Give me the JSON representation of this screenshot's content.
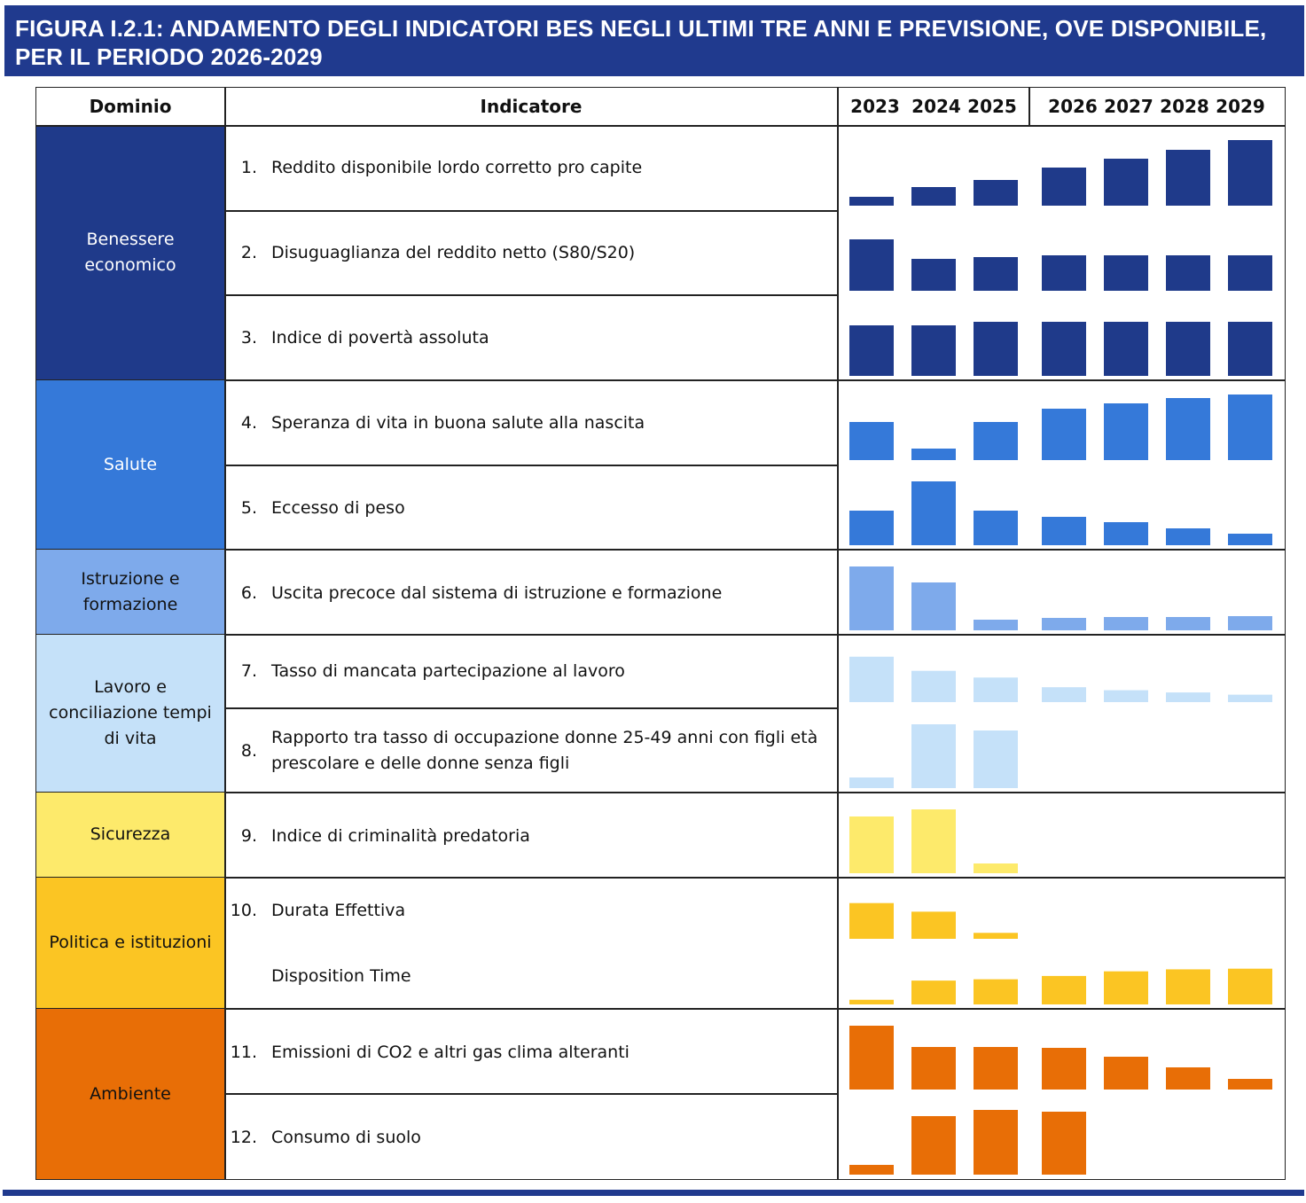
{
  "title": "FIGURA I.2.1: ANDAMENTO DEGLI INDICATORI BES NEGLI ULTIMI TRE ANNI E PREVISIONE, OVE DISPONIBILE, PER IL PERIODO 2026-2029",
  "header": {
    "dominio": "Dominio",
    "indicatore": "Indicatore",
    "years": [
      "2023",
      "2024",
      "2025",
      "2026",
      "2027",
      "2028",
      "2029"
    ]
  },
  "domains": [
    {
      "name": "Benessere economico",
      "color": "#1f3a8a",
      "text_color": "#ffffff"
    },
    {
      "name": "Salute",
      "color": "#3579d9",
      "text_color": "#ffffff"
    },
    {
      "name": "Istruzione e formazione",
      "color": "#7eaaeb",
      "text_color": "#111111"
    },
    {
      "name": "Lavoro e conciliazione tempi di vita",
      "color": "#c5e1f9",
      "text_color": "#111111"
    },
    {
      "name": "Sicurezza",
      "color": "#fdea6b",
      "text_color": "#111111"
    },
    {
      "name": "Politica e istituzioni",
      "color": "#fbc523",
      "text_color": "#111111"
    },
    {
      "name": "Ambiente",
      "color": "#e86e06",
      "text_color": "#111111"
    }
  ],
  "indicators": [
    {
      "num": "1.",
      "label": "Reddito disponibile lordo corretto pro capite"
    },
    {
      "num": "2.",
      "label": "Disuguaglianza del reddito netto (S80/S20)"
    },
    {
      "num": "3.",
      "label": "Indice di povertà assoluta"
    },
    {
      "num": "4.",
      "label": "Speranza di vita in buona salute alla nascita"
    },
    {
      "num": "5.",
      "label": "Eccesso di peso"
    },
    {
      "num": "6.",
      "label": "Uscita precoce dal sistema di istruzione e formazione"
    },
    {
      "num": "7.",
      "label": "Tasso di mancata partecipazione al lavoro"
    },
    {
      "num": "8.",
      "label": "Rapporto tra tasso di occupazione donne 25-49 anni con figli età prescolare e delle donne senza figli"
    },
    {
      "num": "9.",
      "label": "Indice di criminalità predatoria"
    },
    {
      "num": "10.",
      "label": "Durata Effettiva"
    },
    {
      "num": "",
      "label": "Disposition Time"
    },
    {
      "num": "11.",
      "label": "Emissioni di CO2 e altri gas clima alteranti"
    },
    {
      "num": "12.",
      "label": "Consumo di suolo"
    }
  ],
  "chart_data": {
    "type": "bar",
    "categories": [
      "2023",
      "2024",
      "2025",
      "2026",
      "2027",
      "2028",
      "2029"
    ],
    "series": [
      {
        "name": "Reddito disponibile lordo corretto pro capite",
        "values": [
          10,
          21,
          29,
          43,
          53,
          63,
          74
        ]
      },
      {
        "name": "Disuguaglianza del reddito netto (S80/S20)",
        "values": [
          58,
          36,
          38,
          40,
          40,
          40,
          40
        ]
      },
      {
        "name": "Indice di povertà assoluta",
        "values": [
          57,
          57,
          61,
          61,
          61,
          61,
          61
        ]
      },
      {
        "name": "Speranza di vita in buona salute alla nascita",
        "values": [
          43,
          13,
          43,
          58,
          64,
          70,
          74
        ]
      },
      {
        "name": "Eccesso di peso",
        "values": [
          39,
          72,
          39,
          32,
          26,
          19,
          13
        ]
      },
      {
        "name": "Uscita precoce dal sistema di istruzione e formazione",
        "values": [
          72,
          54,
          12,
          14,
          15,
          15,
          16
        ]
      },
      {
        "name": "Tasso di mancata partecipazione al lavoro",
        "values": [
          61,
          42,
          33,
          20,
          16,
          13,
          10
        ]
      },
      {
        "name": "Rapporto tra tasso di occupazione donne 25-49 anni con figli età prescolare e delle donne senza figli",
        "values": [
          12,
          72,
          65,
          null,
          null,
          null,
          null
        ]
      },
      {
        "name": "Indice di criminalità predatoria",
        "values": [
          64,
          72,
          11,
          null,
          null,
          null,
          null
        ]
      },
      {
        "name": "Durata Effettiva",
        "values": [
          54,
          41,
          9,
          null,
          null,
          null,
          null
        ]
      },
      {
        "name": "Disposition Time",
        "values": [
          7,
          36,
          38,
          43,
          50,
          53,
          54
        ]
      },
      {
        "name": "Emissioni di CO2 e altri gas clima alteranti",
        "values": [
          72,
          48,
          48,
          47,
          37,
          25,
          12
        ]
      },
      {
        "name": "Consumo di suolo",
        "values": [
          11,
          66,
          73,
          71,
          null,
          null,
          null
        ]
      }
    ]
  }
}
